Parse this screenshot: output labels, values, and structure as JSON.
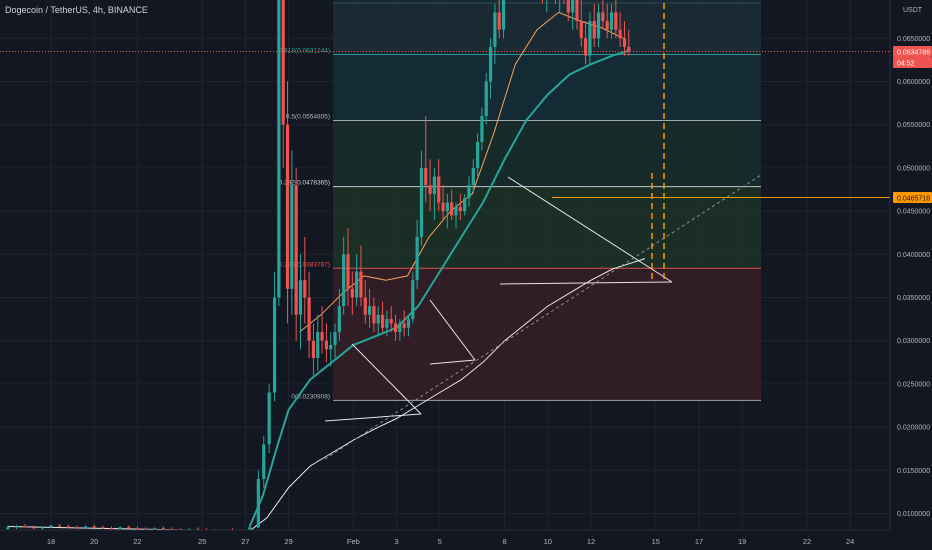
{
  "header": {
    "title": "Dogecoin / TetherUS, 4h, BINANCE"
  },
  "chart_data": {
    "type": "candlestick",
    "symbol": "Dogecoin / TetherUS",
    "interval": "4h",
    "exchange": "BINANCE",
    "currency": "USDT",
    "ylim": [
      0.0075,
      0.1335
    ],
    "y_ticks": [
      0.01,
      0.015,
      0.02,
      0.025,
      0.03,
      0.035,
      0.04,
      0.045,
      0.05,
      0.055,
      0.06,
      0.065,
      0.07,
      0.075,
      0.08,
      0.085,
      0.09,
      0.1,
      0.105,
      0.11,
      0.115,
      0.12,
      0.125,
      0.13
    ],
    "x_ticks": [
      {
        "label": "18",
        "day": 18
      },
      {
        "label": "20",
        "day": 20
      },
      {
        "label": "22",
        "day": 22
      },
      {
        "label": "25",
        "day": 25
      },
      {
        "label": "27",
        "day": 27
      },
      {
        "label": "29",
        "day": 29
      },
      {
        "label": "Feb",
        "day": 32
      },
      {
        "label": "3",
        "day": 34
      },
      {
        "label": "5",
        "day": 36
      },
      {
        "label": "8",
        "day": 39
      },
      {
        "label": "10",
        "day": 41
      },
      {
        "label": "12",
        "day": 43
      },
      {
        "label": "15",
        "day": 46
      },
      {
        "label": "17",
        "day": 48
      },
      {
        "label": "19",
        "day": 50
      },
      {
        "label": "22",
        "day": 53
      },
      {
        "label": "24",
        "day": 55
      }
    ],
    "fib_levels": [
      {
        "ratio": "1",
        "price": 0.0878701,
        "label": "1(0.0878701)",
        "color": "#b2b5be"
      },
      {
        "ratio": "0.786",
        "price": 0.0740073,
        "label": "0.786(0.0740073)",
        "color": "#4fc3f7"
      },
      {
        "ratio": "0.618",
        "price": 0.0631244,
        "label": "0.618(0.0631244)",
        "color": "#26a69a"
      },
      {
        "ratio": "0.5",
        "price": 0.0554805,
        "label": "0.5(0.0554805)",
        "color": "#b2b5be"
      },
      {
        "ratio": "0.382",
        "price": 0.0478365,
        "label": "0.382(0.0478365)",
        "color": "#d1d4dc"
      },
      {
        "ratio": "0.236",
        "price": 0.0383787,
        "label": "0.236(0.0383787)",
        "color": "#ef5350"
      },
      {
        "ratio": "0",
        "price": 0.0230908,
        "label": "0(0.0230908)",
        "color": "#b2b5be"
      }
    ],
    "last_price": {
      "value": 0.0634786,
      "label": "0.0634786",
      "countdown": "04:52"
    },
    "marker_price": {
      "value": 0.0465718,
      "label": "0.0465718"
    },
    "candles": [
      [
        16.0,
        0.0082,
        0.0086,
        0.008,
        0.0084
      ],
      [
        16.4,
        0.0084,
        0.0087,
        0.0082,
        0.0085
      ],
      [
        16.8,
        0.0085,
        0.0088,
        0.0083,
        0.0084
      ],
      [
        17.2,
        0.0084,
        0.0086,
        0.0082,
        0.0083
      ],
      [
        17.6,
        0.0083,
        0.0085,
        0.0081,
        0.0084
      ],
      [
        18.0,
        0.0084,
        0.0087,
        0.0083,
        0.0086
      ],
      [
        18.4,
        0.0086,
        0.0088,
        0.0084,
        0.0085
      ],
      [
        18.8,
        0.0085,
        0.0087,
        0.0083,
        0.0084
      ],
      [
        19.2,
        0.0084,
        0.0086,
        0.0082,
        0.0083
      ],
      [
        19.6,
        0.0083,
        0.0086,
        0.0082,
        0.0085
      ],
      [
        20.0,
        0.0085,
        0.0087,
        0.0083,
        0.0084
      ],
      [
        20.4,
        0.0084,
        0.0086,
        0.0082,
        0.0083
      ],
      [
        20.8,
        0.0083,
        0.0085,
        0.0081,
        0.0082
      ],
      [
        21.2,
        0.0082,
        0.0085,
        0.0081,
        0.0084
      ],
      [
        21.6,
        0.0084,
        0.0086,
        0.0082,
        0.0083
      ],
      [
        22.0,
        0.0083,
        0.0085,
        0.0081,
        0.0082
      ],
      [
        22.4,
        0.0082,
        0.0084,
        0.008,
        0.0081
      ],
      [
        22.8,
        0.0081,
        0.0084,
        0.008,
        0.0083
      ],
      [
        23.2,
        0.0083,
        0.0085,
        0.0081,
        0.0082
      ],
      [
        23.6,
        0.0082,
        0.0084,
        0.008,
        0.0081
      ],
      [
        24.0,
        0.0081,
        0.0083,
        0.0079,
        0.008
      ],
      [
        24.4,
        0.008,
        0.0083,
        0.0079,
        0.0082
      ],
      [
        24.8,
        0.0082,
        0.0084,
        0.008,
        0.0081
      ],
      [
        25.2,
        0.0081,
        0.0083,
        0.0079,
        0.008
      ],
      [
        25.6,
        0.008,
        0.0082,
        0.0078,
        0.0079
      ],
      [
        26.0,
        0.0079,
        0.0082,
        0.0078,
        0.0081
      ],
      [
        26.4,
        0.0081,
        0.0083,
        0.0079,
        0.008
      ],
      [
        26.8,
        0.008,
        0.0082,
        0.0078,
        0.0079
      ],
      [
        27.2,
        0.0079,
        0.0085,
        0.0078,
        0.0084
      ],
      [
        27.6,
        0.0084,
        0.015,
        0.0083,
        0.014
      ],
      [
        27.85,
        0.014,
        0.019,
        0.013,
        0.018
      ],
      [
        28.1,
        0.018,
        0.025,
        0.017,
        0.024
      ],
      [
        28.35,
        0.024,
        0.038,
        0.023,
        0.035
      ],
      [
        28.55,
        0.035,
        0.087,
        0.034,
        0.084
      ],
      [
        28.75,
        0.084,
        0.086,
        0.05,
        0.055
      ],
      [
        28.95,
        0.055,
        0.06,
        0.032,
        0.036
      ],
      [
        29.15,
        0.036,
        0.052,
        0.033,
        0.048
      ],
      [
        29.35,
        0.048,
        0.05,
        0.03,
        0.033
      ],
      [
        29.55,
        0.033,
        0.04,
        0.029,
        0.037
      ],
      [
        29.75,
        0.037,
        0.042,
        0.032,
        0.035
      ],
      [
        29.95,
        0.035,
        0.038,
        0.028,
        0.03
      ],
      [
        30.15,
        0.03,
        0.032,
        0.026,
        0.028
      ],
      [
        30.35,
        0.028,
        0.033,
        0.0265,
        0.031
      ],
      [
        30.55,
        0.031,
        0.034,
        0.0285,
        0.03
      ],
      [
        30.75,
        0.03,
        0.032,
        0.0275,
        0.029
      ],
      [
        30.95,
        0.029,
        0.031,
        0.027,
        0.0295
      ],
      [
        31.15,
        0.0295,
        0.032,
        0.028,
        0.031
      ],
      [
        31.35,
        0.031,
        0.036,
        0.03,
        0.034
      ],
      [
        31.55,
        0.034,
        0.042,
        0.033,
        0.04
      ],
      [
        31.75,
        0.04,
        0.043,
        0.034,
        0.036
      ],
      [
        31.95,
        0.036,
        0.038,
        0.033,
        0.035
      ],
      [
        32.15,
        0.035,
        0.04,
        0.034,
        0.038
      ],
      [
        32.35,
        0.038,
        0.041,
        0.034,
        0.035
      ],
      [
        32.55,
        0.035,
        0.037,
        0.032,
        0.033
      ],
      [
        32.75,
        0.033,
        0.036,
        0.0315,
        0.034
      ],
      [
        32.95,
        0.034,
        0.035,
        0.031,
        0.032
      ],
      [
        33.15,
        0.032,
        0.034,
        0.0305,
        0.033
      ],
      [
        33.35,
        0.033,
        0.0345,
        0.031,
        0.0315
      ],
      [
        33.55,
        0.0315,
        0.0335,
        0.0305,
        0.0325
      ],
      [
        33.75,
        0.0325,
        0.034,
        0.031,
        0.032
      ],
      [
        33.95,
        0.032,
        0.033,
        0.03,
        0.031
      ],
      [
        34.15,
        0.031,
        0.0325,
        0.03,
        0.032
      ],
      [
        34.35,
        0.032,
        0.0335,
        0.0305,
        0.0315
      ],
      [
        34.55,
        0.0315,
        0.033,
        0.0305,
        0.0325
      ],
      [
        34.75,
        0.0325,
        0.038,
        0.032,
        0.037
      ],
      [
        34.95,
        0.037,
        0.044,
        0.036,
        0.042
      ],
      [
        35.15,
        0.042,
        0.052,
        0.041,
        0.05
      ],
      [
        35.35,
        0.05,
        0.056,
        0.046,
        0.048
      ],
      [
        35.55,
        0.048,
        0.051,
        0.045,
        0.047
      ],
      [
        35.75,
        0.047,
        0.05,
        0.044,
        0.049
      ],
      [
        35.95,
        0.049,
        0.051,
        0.045,
        0.046
      ],
      [
        36.15,
        0.046,
        0.048,
        0.044,
        0.045
      ],
      [
        36.35,
        0.045,
        0.047,
        0.043,
        0.046
      ],
      [
        36.55,
        0.046,
        0.0475,
        0.044,
        0.0445
      ],
      [
        36.75,
        0.0445,
        0.046,
        0.043,
        0.0455
      ],
      [
        36.95,
        0.0455,
        0.047,
        0.044,
        0.045
      ],
      [
        37.15,
        0.045,
        0.047,
        0.0445,
        0.0465
      ],
      [
        37.35,
        0.0465,
        0.049,
        0.0455,
        0.048
      ],
      [
        37.55,
        0.048,
        0.051,
        0.047,
        0.05
      ],
      [
        37.75,
        0.05,
        0.054,
        0.049,
        0.053
      ],
      [
        37.95,
        0.053,
        0.057,
        0.052,
        0.056
      ],
      [
        38.15,
        0.056,
        0.061,
        0.055,
        0.06
      ],
      [
        38.35,
        0.06,
        0.065,
        0.058,
        0.064
      ],
      [
        38.55,
        0.064,
        0.069,
        0.062,
        0.068
      ],
      [
        38.75,
        0.068,
        0.072,
        0.065,
        0.066
      ],
      [
        38.95,
        0.066,
        0.078,
        0.065,
        0.077
      ],
      [
        39.15,
        0.077,
        0.088,
        0.076,
        0.084
      ],
      [
        39.35,
        0.084,
        0.086,
        0.074,
        0.076
      ],
      [
        39.55,
        0.076,
        0.085,
        0.074,
        0.083
      ],
      [
        39.75,
        0.083,
        0.086,
        0.079,
        0.081
      ],
      [
        39.95,
        0.081,
        0.085,
        0.078,
        0.084
      ],
      [
        40.15,
        0.084,
        0.0855,
        0.076,
        0.078
      ],
      [
        40.35,
        0.078,
        0.083,
        0.07,
        0.072
      ],
      [
        40.55,
        0.072,
        0.078,
        0.07,
        0.076
      ],
      [
        40.75,
        0.076,
        0.079,
        0.069,
        0.07
      ],
      [
        40.95,
        0.07,
        0.073,
        0.068,
        0.072
      ],
      [
        41.15,
        0.072,
        0.076,
        0.07,
        0.074
      ],
      [
        41.35,
        0.074,
        0.076,
        0.069,
        0.07
      ],
      [
        41.55,
        0.07,
        0.074,
        0.068,
        0.073
      ],
      [
        41.75,
        0.073,
        0.075,
        0.069,
        0.07
      ],
      [
        41.95,
        0.07,
        0.072,
        0.067,
        0.068
      ],
      [
        42.15,
        0.068,
        0.071,
        0.066,
        0.07
      ],
      [
        42.35,
        0.07,
        0.072,
        0.066,
        0.067
      ],
      [
        42.55,
        0.067,
        0.07,
        0.064,
        0.065
      ],
      [
        42.75,
        0.065,
        0.067,
        0.062,
        0.063
      ],
      [
        42.95,
        0.063,
        0.068,
        0.062,
        0.067
      ],
      [
        43.15,
        0.067,
        0.069,
        0.064,
        0.065
      ],
      [
        43.35,
        0.065,
        0.069,
        0.064,
        0.068
      ],
      [
        43.55,
        0.068,
        0.07,
        0.066,
        0.067
      ],
      [
        43.75,
        0.067,
        0.069,
        0.065,
        0.066
      ],
      [
        43.95,
        0.066,
        0.069,
        0.065,
        0.068
      ],
      [
        44.15,
        0.068,
        0.0695,
        0.065,
        0.066
      ],
      [
        44.35,
        0.066,
        0.068,
        0.064,
        0.065
      ],
      [
        44.55,
        0.065,
        0.067,
        0.063,
        0.064
      ],
      [
        44.75,
        0.064,
        0.066,
        0.063,
        0.0635
      ]
    ],
    "ema_short": [
      [
        29.5,
        0.031
      ],
      [
        30.5,
        0.033
      ],
      [
        31.5,
        0.0355
      ],
      [
        32.5,
        0.0375
      ],
      [
        33.5,
        0.037
      ],
      [
        34.5,
        0.0375
      ],
      [
        35.5,
        0.042
      ],
      [
        36.5,
        0.045
      ],
      [
        37.5,
        0.047
      ],
      [
        38.5,
        0.054
      ],
      [
        39.5,
        0.062
      ],
      [
        40.5,
        0.066
      ],
      [
        41.5,
        0.068
      ],
      [
        42.5,
        0.067
      ],
      [
        43.5,
        0.0662
      ],
      [
        44.5,
        0.065
      ]
    ],
    "ema_medium": [
      [
        27.2,
        0.0085
      ],
      [
        27.8,
        0.012
      ],
      [
        28.5,
        0.018
      ],
      [
        29.0,
        0.022
      ],
      [
        30.0,
        0.0255
      ],
      [
        31.0,
        0.0275
      ],
      [
        32.0,
        0.0295
      ],
      [
        33.0,
        0.0305
      ],
      [
        34.0,
        0.0315
      ],
      [
        35.0,
        0.034
      ],
      [
        36.0,
        0.038
      ],
      [
        37.0,
        0.042
      ],
      [
        38.0,
        0.046
      ],
      [
        39.0,
        0.051
      ],
      [
        40.0,
        0.0555
      ],
      [
        41.0,
        0.0585
      ],
      [
        42.0,
        0.0608
      ],
      [
        43.0,
        0.062
      ],
      [
        44.0,
        0.063
      ],
      [
        44.8,
        0.0636
      ]
    ],
    "ema_long": [
      [
        16.0,
        0.0085
      ],
      [
        20.0,
        0.0083
      ],
      [
        24.0,
        0.0081
      ],
      [
        27.2,
        0.008
      ],
      [
        28.0,
        0.0095
      ],
      [
        29.0,
        0.013
      ],
      [
        30.0,
        0.0155
      ],
      [
        31.0,
        0.017
      ],
      [
        32.0,
        0.0185
      ],
      [
        33.0,
        0.0198
      ],
      [
        34.0,
        0.021
      ],
      [
        35.0,
        0.0225
      ],
      [
        36.0,
        0.024
      ],
      [
        37.0,
        0.0255
      ],
      [
        38.0,
        0.0275
      ],
      [
        39.0,
        0.03
      ],
      [
        40.0,
        0.032
      ],
      [
        41.0,
        0.034
      ],
      [
        42.0,
        0.0355
      ],
      [
        43.0,
        0.037
      ],
      [
        44.0,
        0.0383
      ],
      [
        45.5,
        0.0395
      ]
    ]
  }
}
